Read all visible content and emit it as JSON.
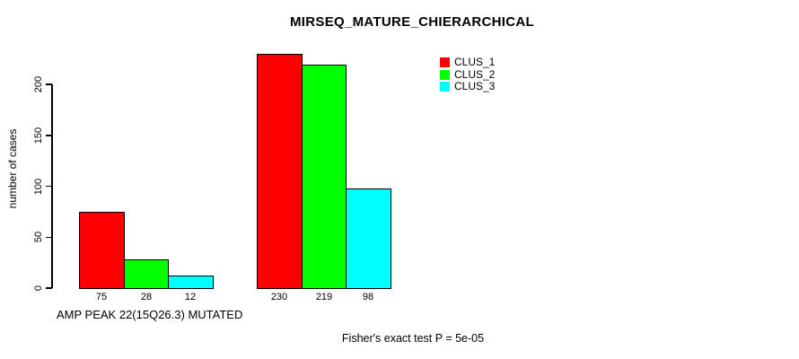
{
  "chart_data": {
    "type": "bar",
    "title": "MIRSEQ_MATURE_CHIERARCHICAL",
    "ylabel": "number of cases",
    "xlabel": "",
    "group_label": "AMP PEAK 22(15Q26.3) MUTATED",
    "annotation": "Fisher's exact test P = 5e-05",
    "categories": [
      "AMP PEAK 22(15Q26.3) MUTATED",
      ""
    ],
    "series": [
      {
        "name": "CLUS_1",
        "color": "#ff0000",
        "values": [
          75,
          230
        ]
      },
      {
        "name": "CLUS_2",
        "color": "#00ff00",
        "values": [
          28,
          219
        ]
      },
      {
        "name": "CLUS_3",
        "color": "#00ffff",
        "values": [
          12,
          98
        ]
      }
    ],
    "bar_value_labels": [
      [
        75,
        28,
        12
      ],
      [
        230,
        219,
        98
      ]
    ],
    "yticks": [
      0,
      50,
      100,
      150,
      200
    ],
    "ylim": [
      0,
      232
    ],
    "grid": false,
    "legend_position": "top-right",
    "legend_entries": [
      "CLUS_1",
      "CLUS_2",
      "CLUS_3"
    ],
    "colors": {
      "background": "#ffffff",
      "bar_border": "#000000",
      "axis": "#000000",
      "text": "#000000"
    }
  }
}
